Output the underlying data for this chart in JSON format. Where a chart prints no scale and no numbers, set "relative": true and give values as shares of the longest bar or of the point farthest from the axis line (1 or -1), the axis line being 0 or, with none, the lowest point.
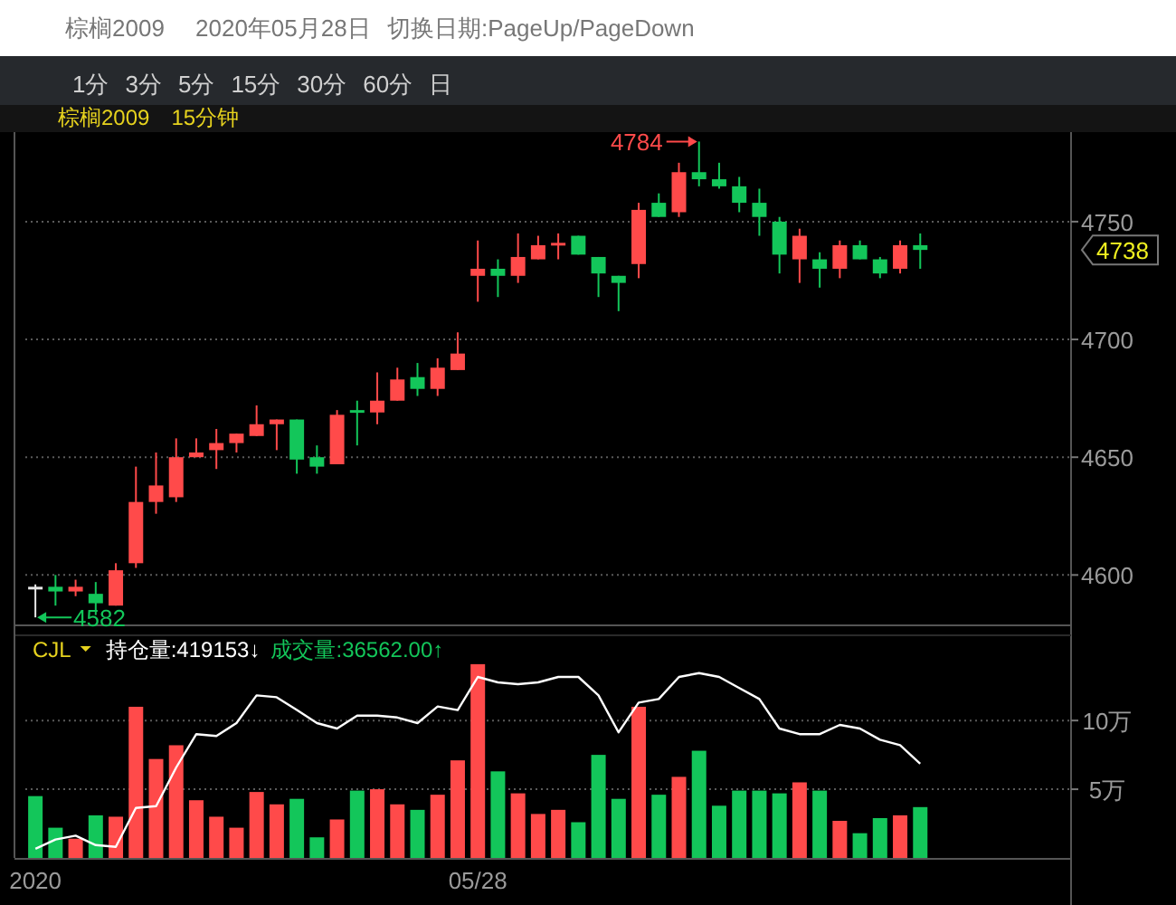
{
  "chart_data": [
    {
      "type": "candlestick",
      "title": "棕榈2009",
      "subtitle": "15分钟",
      "tick_labels": "y",
      "grid": "y",
      "annotations": [
        "棕榈2009",
        "2020年05月28日",
        "切换日期:PageUp/PageDown",
        "1分",
        "3分",
        "5分",
        "15分",
        "30分",
        "60分",
        "日",
        "4784",
        "4582",
        "4738"
      ],
      "categories": [
        null,
        null,
        null,
        null,
        null,
        null,
        null,
        null,
        null,
        null,
        null,
        null,
        null,
        null,
        null,
        null,
        null,
        null,
        null,
        null,
        null,
        null,
        null,
        null,
        null,
        null,
        null,
        null,
        null,
        null,
        null,
        null,
        null,
        null,
        null,
        null,
        null,
        null,
        null,
        null,
        null,
        null,
        null,
        null,
        null,
        null,
        null,
        null,
        null,
        null,
        null,
        null
      ],
      "ylim": [
        4579,
        4788
      ],
      "yticks": [
        4600,
        4650,
        4700,
        4750
      ],
      "ohlc": [
        [
          4595,
          4596,
          4582,
          4595
        ],
        [
          4595,
          4600,
          4587,
          4593
        ],
        [
          4593,
          4598,
          4591,
          4595
        ],
        [
          4592,
          4597,
          4583,
          4588
        ],
        [
          4587,
          4605,
          4587,
          4602
        ],
        [
          4605,
          4646,
          4603,
          4631
        ],
        [
          4631,
          4652,
          4626,
          4638
        ],
        [
          4633,
          4658,
          4631,
          4650
        ],
        [
          4650,
          4658,
          4650,
          4652
        ],
        [
          4653,
          4662,
          4645,
          4656
        ],
        [
          4656,
          4660,
          4652,
          4660
        ],
        [
          4659,
          4672,
          4659,
          4664
        ],
        [
          4664,
          4666,
          4653,
          4666
        ],
        [
          4666,
          4666,
          4643,
          4649
        ],
        [
          4650,
          4655,
          4643,
          4646
        ],
        [
          4647,
          4670,
          4647,
          4668
        ],
        [
          4670,
          4674,
          4655,
          4669
        ],
        [
          4669,
          4686,
          4664,
          4674
        ],
        [
          4674,
          4688,
          4674,
          4683
        ],
        [
          4684,
          4690,
          4676,
          4679
        ],
        [
          4679,
          4692,
          4676,
          4688
        ],
        [
          4687,
          4703,
          4687,
          4694
        ],
        [
          4727,
          4742,
          4716,
          4730
        ],
        [
          4730,
          4734,
          4718,
          4727
        ],
        [
          4727,
          4745,
          4724,
          4735
        ],
        [
          4734,
          4744,
          4734,
          4740
        ],
        [
          4740,
          4745,
          4734,
          4741
        ],
        [
          4744,
          4744,
          4736,
          4736
        ],
        [
          4735,
          4735,
          4718,
          4728
        ],
        [
          4727,
          4727,
          4712,
          4724
        ],
        [
          4732,
          4758,
          4726,
          4755
        ],
        [
          4758,
          4762,
          4752,
          4752
        ],
        [
          4754,
          4775,
          4752,
          4771
        ],
        [
          4771,
          4784,
          4765,
          4768
        ],
        [
          4768,
          4775,
          4764,
          4765
        ],
        [
          4765,
          4769,
          4754,
          4758
        ],
        [
          4758,
          4764,
          4744,
          4752
        ],
        [
          4750,
          4752,
          4728,
          4736
        ],
        [
          4734,
          4747,
          4724,
          4744
        ],
        [
          4734,
          4737,
          4722,
          4730
        ],
        [
          4730,
          4742,
          4726,
          4740
        ],
        [
          4740,
          4742,
          4734,
          4734
        ],
        [
          4734,
          4735,
          4726,
          4728
        ],
        [
          4730,
          4742,
          4728,
          4740
        ],
        [
          4740,
          4745,
          4730,
          4738
        ],
        null,
        null,
        null,
        null,
        null,
        null,
        null
      ],
      "colors": [
        "#e8e8e8",
        "#13c65a",
        "#ff4a4a",
        "#13c65a",
        "#ff4a4a",
        "#ff4a4a",
        "#ff4a4a",
        "#ff4a4a",
        "#ff4a4a",
        "#ff4a4a",
        "#ff4a4a",
        "#ff4a4a",
        "#ff4a4a",
        "#13c65a",
        "#13c65a",
        "#ff4a4a",
        "#13c65a",
        "#ff4a4a",
        "#ff4a4a",
        "#13c65a",
        "#ff4a4a",
        "#ff4a4a",
        "#ff4a4a",
        "#13c65a",
        "#ff4a4a",
        "#ff4a4a",
        "#ff4a4a",
        "#13c65a",
        "#13c65a",
        "#13c65a",
        "#ff4a4a",
        "#13c65a",
        "#ff4a4a",
        "#13c65a",
        "#13c65a",
        "#13c65a",
        "#13c65a",
        "#13c65a",
        "#ff4a4a",
        "#13c65a",
        "#ff4a4a",
        "#13c65a",
        "#13c65a",
        "#ff4a4a",
        "#13c65a",
        null,
        null,
        null,
        null,
        null,
        null,
        null
      ]
    },
    {
      "type": "bar",
      "title": "CJL",
      "grid": "y",
      "categories": [
        "2020",
        null,
        null,
        null,
        null,
        null,
        null,
        null,
        null,
        null,
        null,
        null,
        null,
        null,
        null,
        null,
        null,
        null,
        null,
        null,
        null,
        null,
        "05/28",
        null,
        null,
        null,
        null,
        null,
        null,
        null,
        null,
        null,
        null,
        null,
        null,
        null,
        null,
        null,
        null,
        null,
        null,
        null,
        null,
        null,
        null,
        null,
        null,
        null,
        null,
        null,
        null,
        null
      ],
      "ylim": [
        0,
        16.2
      ],
      "yticks": [
        {
          "value": 5,
          "label": "5万"
        },
        {
          "value": 10,
          "label": "10万"
        }
      ],
      "series": [
        {
          "name": "成交量:36562.00↑",
          "color": "#13c65a",
          "values": [
            4.5,
            2.2,
            1.4,
            3.1,
            3.0,
            11.0,
            7.2,
            8.2,
            4.2,
            3.0,
            2.2,
            4.8,
            3.9,
            4.3,
            1.5,
            2.8,
            4.9,
            5.0,
            3.9,
            3.5,
            4.6,
            7.1,
            14.1,
            6.3,
            4.7,
            3.2,
            3.5,
            2.6,
            7.5,
            4.3,
            11.0,
            4.6,
            5.9,
            7.8,
            3.8,
            4.9,
            4.9,
            4.7,
            5.5,
            4.9,
            2.7,
            1.8,
            2.9,
            3.1,
            3.7,
            null,
            null,
            null,
            null,
            null,
            null,
            null
          ],
          "colors": [
            "#13c65a",
            "#13c65a",
            "#ff4a4a",
            "#13c65a",
            "#ff4a4a",
            "#ff4a4a",
            "#ff4a4a",
            "#ff4a4a",
            "#ff4a4a",
            "#ff4a4a",
            "#ff4a4a",
            "#ff4a4a",
            "#ff4a4a",
            "#13c65a",
            "#13c65a",
            "#ff4a4a",
            "#13c65a",
            "#ff4a4a",
            "#ff4a4a",
            "#13c65a",
            "#ff4a4a",
            "#ff4a4a",
            "#ff4a4a",
            "#13c65a",
            "#ff4a4a",
            "#ff4a4a",
            "#ff4a4a",
            "#13c65a",
            "#13c65a",
            "#13c65a",
            "#ff4a4a",
            "#13c65a",
            "#ff4a4a",
            "#13c65a",
            "#13c65a",
            "#13c65a",
            "#13c65a",
            "#13c65a",
            "#ff4a4a",
            "#13c65a",
            "#ff4a4a",
            "#13c65a",
            "#13c65a",
            "#ff4a4a",
            "#13c65a",
            null,
            null,
            null,
            null,
            null,
            null,
            null
          ]
        }
      ]
    },
    {
      "type": "line",
      "relative": true,
      "tick_labels": false,
      "categories": [
        null,
        null,
        null,
        null,
        null,
        null,
        null,
        null,
        null,
        null,
        null,
        null,
        null,
        null,
        null,
        null,
        null,
        null,
        null,
        null,
        null,
        null,
        null,
        null,
        null,
        null,
        null,
        null,
        null,
        null,
        null,
        null,
        null,
        null,
        null,
        null,
        null,
        null,
        null,
        null,
        null,
        null,
        null,
        null,
        null,
        null,
        null,
        null,
        null,
        null,
        null,
        null
      ],
      "series": [
        {
          "name": "持仓量:419153↓",
          "color": "#ffffff",
          "values": [
            0.05,
            0.1,
            0.12,
            0.07,
            0.06,
            0.27,
            0.28,
            0.49,
            0.67,
            0.66,
            0.73,
            0.88,
            0.87,
            0.8,
            0.73,
            0.7,
            0.77,
            0.77,
            0.76,
            0.73,
            0.82,
            0.8,
            0.98,
            0.95,
            0.94,
            0.95,
            0.98,
            0.98,
            0.88,
            0.68,
            0.84,
            0.86,
            0.98,
            1,
            0.98,
            0.92,
            0.86,
            0.7,
            0.67,
            0.67,
            0.72,
            0.7,
            0.64,
            0.61,
            0.51,
            null,
            null,
            null,
            null,
            null,
            null,
            null
          ]
        }
      ]
    }
  ]
}
